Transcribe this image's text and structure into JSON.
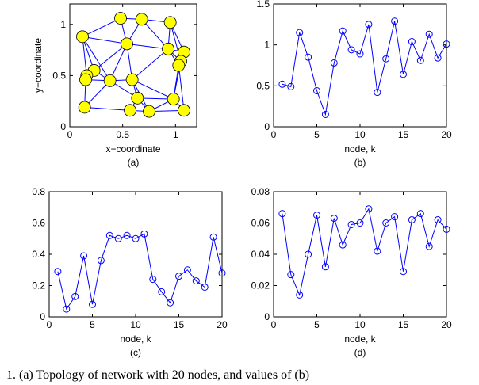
{
  "chart_data": [
    {
      "type": "scatter",
      "xlabel": "x−coordinate",
      "ylabel": "y−coordinate",
      "caption": "(a)",
      "x": [
        0.12,
        0.48,
        0.68,
        0.95,
        0.54,
        0.93,
        1.08,
        1.05,
        1.03,
        0.23,
        0.16,
        0.15,
        0.38,
        0.59,
        0.64,
        0.98,
        0.14,
        0.57,
        0.75,
        1.08
      ],
      "y": [
        0.88,
        1.06,
        1.05,
        1.02,
        0.81,
        0.76,
        0.73,
        0.64,
        0.6,
        0.55,
        0.5,
        0.46,
        0.45,
        0.46,
        0.28,
        0.27,
        0.19,
        0.16,
        0.15,
        0.16
      ],
      "edges": [
        [
          0,
          1
        ],
        [
          0,
          4
        ],
        [
          0,
          9
        ],
        [
          0,
          10
        ],
        [
          0,
          12
        ],
        [
          1,
          2
        ],
        [
          1,
          4
        ],
        [
          2,
          3
        ],
        [
          2,
          4
        ],
        [
          2,
          5
        ],
        [
          3,
          5
        ],
        [
          3,
          6
        ],
        [
          3,
          7
        ],
        [
          4,
          5
        ],
        [
          4,
          12
        ],
        [
          4,
          13
        ],
        [
          4,
          9
        ],
        [
          5,
          6
        ],
        [
          5,
          7
        ],
        [
          5,
          8
        ],
        [
          5,
          13
        ],
        [
          6,
          7
        ],
        [
          6,
          8
        ],
        [
          7,
          8
        ],
        [
          8,
          15
        ],
        [
          8,
          19
        ],
        [
          9,
          10
        ],
        [
          9,
          11
        ],
        [
          9,
          12
        ],
        [
          10,
          11
        ],
        [
          11,
          12
        ],
        [
          11,
          16
        ],
        [
          12,
          13
        ],
        [
          12,
          14
        ],
        [
          12,
          16
        ],
        [
          13,
          14
        ],
        [
          13,
          15
        ],
        [
          14,
          17
        ],
        [
          14,
          18
        ],
        [
          14,
          15
        ],
        [
          15,
          18
        ],
        [
          15,
          19
        ],
        [
          16,
          17
        ],
        [
          17,
          18
        ],
        [
          18,
          19
        ],
        [
          13,
          18
        ],
        [
          15,
          7
        ]
      ],
      "color": "#0000ff",
      "node_color": "#ffff00",
      "xlim": [
        0,
        1.2
      ],
      "ylim": [
        0,
        1.2
      ],
      "xticks": [
        0,
        0.5,
        1
      ],
      "yticks": [
        0,
        0.5,
        1
      ]
    },
    {
      "type": "line",
      "xlabel": "node, k",
      "caption": "(b)",
      "color": "#0000ff",
      "x": [
        1,
        2,
        3,
        4,
        5,
        6,
        7,
        8,
        9,
        10,
        11,
        12,
        13,
        14,
        15,
        16,
        17,
        18,
        19,
        20
      ],
      "values": [
        0.52,
        0.49,
        1.15,
        0.85,
        0.44,
        0.15,
        0.78,
        1.17,
        0.94,
        0.89,
        1.25,
        0.42,
        0.83,
        1.29,
        0.64,
        1.04,
        0.81,
        1.13,
        0.84,
        1.01
      ],
      "xlim": [
        0,
        20
      ],
      "ylim": [
        0,
        1.5
      ],
      "xticks": [
        0,
        5,
        10,
        15,
        20
      ],
      "yticks": [
        0,
        0.5,
        1,
        1.5
      ]
    },
    {
      "type": "line",
      "xlabel": "node, k",
      "caption": "(c)",
      "color": "#0000ff",
      "x": [
        1,
        2,
        3,
        4,
        5,
        6,
        7,
        8,
        9,
        10,
        11,
        12,
        13,
        14,
        15,
        16,
        17,
        18,
        19,
        20
      ],
      "values": [
        0.29,
        0.05,
        0.13,
        0.39,
        0.08,
        0.36,
        0.52,
        0.5,
        0.52,
        0.5,
        0.53,
        0.24,
        0.16,
        0.09,
        0.26,
        0.3,
        0.23,
        0.19,
        0.51,
        0.28
      ],
      "xlim": [
        0,
        20
      ],
      "ylim": [
        0,
        0.8
      ],
      "xticks": [
        0,
        5,
        10,
        15,
        20
      ],
      "yticks": [
        0,
        0.2,
        0.4,
        0.6,
        0.8
      ]
    },
    {
      "type": "line",
      "xlabel": "node, k",
      "caption": "(d)",
      "color": "#0000ff",
      "x": [
        1,
        2,
        3,
        4,
        5,
        6,
        7,
        8,
        9,
        10,
        11,
        12,
        13,
        14,
        15,
        16,
        17,
        18,
        19,
        20
      ],
      "values": [
        0.066,
        0.027,
        0.014,
        0.04,
        0.065,
        0.032,
        0.063,
        0.046,
        0.059,
        0.06,
        0.069,
        0.042,
        0.06,
        0.064,
        0.029,
        0.062,
        0.066,
        0.045,
        0.062,
        0.056
      ],
      "xlim": [
        0,
        20
      ],
      "ylim": [
        0,
        0.08
      ],
      "xticks": [
        0,
        5,
        10,
        15,
        20
      ],
      "yticks": [
        0,
        0.02,
        0.04,
        0.06,
        0.08
      ]
    }
  ],
  "figure_caption": "1.   (a) Topology of network with 20 nodes, and values of (b)"
}
